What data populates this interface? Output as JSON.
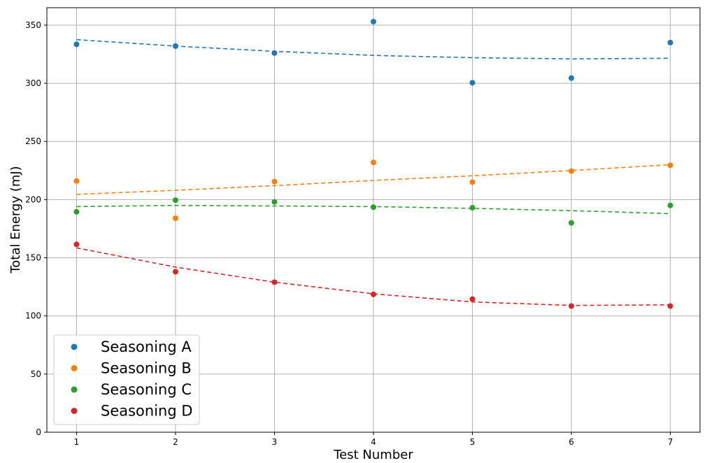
{
  "chart_data": {
    "type": "scatter",
    "title": "",
    "xlabel": "Test Number",
    "ylabel": "Total Energy (mJ)",
    "xlim": [
      0.7,
      7.3
    ],
    "ylim": [
      0,
      365
    ],
    "x_ticks": [
      1,
      2,
      3,
      4,
      5,
      6,
      7
    ],
    "y_ticks": [
      0,
      50,
      100,
      150,
      200,
      250,
      300,
      350
    ],
    "grid": true,
    "legend_position": "lower-left",
    "x": [
      1,
      2,
      3,
      4,
      5,
      6,
      7
    ],
    "series": [
      {
        "name": "Seasoning A",
        "color": "#1f77b4",
        "values": [
          333.5,
          332,
          326,
          353,
          300.5,
          304.5,
          335
        ],
        "trend": [
          337.5,
          332,
          327.5,
          324,
          322,
          321,
          321.5
        ]
      },
      {
        "name": "Seasoning B",
        "color": "#ff7f0e",
        "values": [
          216,
          184,
          215.5,
          232,
          215,
          224.5,
          229.5
        ],
        "trend": [
          204.5,
          208,
          212,
          216.5,
          220.5,
          225,
          230
        ]
      },
      {
        "name": "Seasoning C",
        "color": "#2ca02c",
        "values": [
          189.5,
          199.5,
          198,
          193.5,
          193,
          180,
          195
        ],
        "trend": [
          194,
          195,
          194.5,
          194,
          192.5,
          190.5,
          188
        ]
      },
      {
        "name": "Seasoning D",
        "color": "#d62728",
        "values": [
          161.5,
          138,
          129,
          118.5,
          114.5,
          108.5,
          108.5
        ],
        "trend": [
          158.5,
          142,
          129,
          119,
          112,
          109,
          109.5
        ]
      }
    ]
  }
}
